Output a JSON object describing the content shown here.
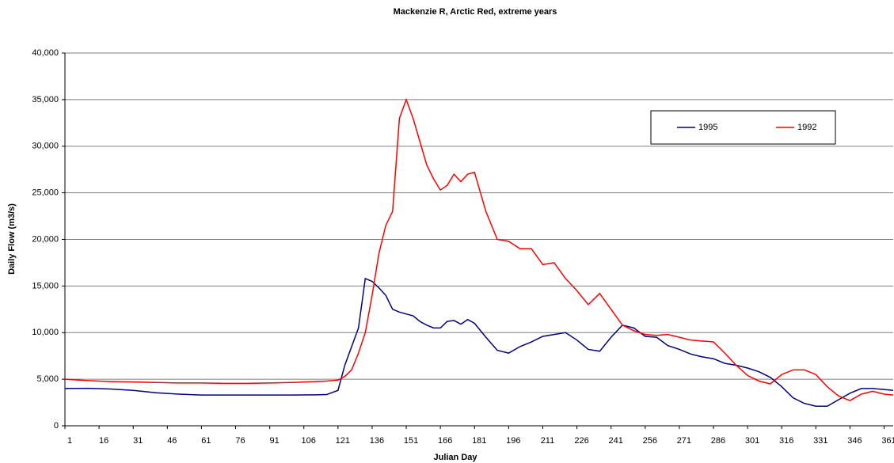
{
  "chart_data": {
    "type": "line",
    "title": "Mackenzie R, Arctic Red, extreme years",
    "x_label": "Julian Day",
    "y_label": "Daily Flow (m3/s)",
    "x": [
      1,
      11,
      21,
      31,
      41,
      51,
      61,
      71,
      81,
      91,
      101,
      111,
      116,
      121,
      124,
      127,
      130,
      133,
      136,
      139,
      142,
      145,
      148,
      151,
      154,
      157,
      160,
      163,
      166,
      169,
      172,
      175,
      178,
      181,
      186,
      191,
      196,
      201,
      206,
      211,
      216,
      221,
      226,
      231,
      236,
      241,
      246,
      251,
      256,
      261,
      266,
      271,
      276,
      281,
      286,
      291,
      296,
      301,
      306,
      311,
      316,
      321,
      326,
      331,
      336,
      341,
      346,
      351,
      356,
      361,
      365
    ],
    "series": [
      {
        "name": "1995",
        "color": "#000080",
        "values": [
          4000,
          4020,
          3950,
          3800,
          3550,
          3400,
          3300,
          3300,
          3300,
          3300,
          3300,
          3320,
          3350,
          3800,
          6500,
          8500,
          10500,
          15800,
          15500,
          14800,
          14000,
          12500,
          12200,
          12000,
          11800,
          11200,
          10800,
          10500,
          10500,
          11200,
          11300,
          10900,
          11400,
          11000,
          9500,
          8100,
          7800,
          8500,
          9000,
          9600,
          9800,
          10000,
          9200,
          8200,
          8000,
          9500,
          10800,
          10500,
          9600,
          9500,
          8600,
          8200,
          7700,
          7400,
          7200,
          6700,
          6500,
          6200,
          5800,
          5200,
          4200,
          3000,
          2400,
          2100,
          2100,
          2800,
          3500,
          4000,
          4000,
          3900,
          3800
        ]
      },
      {
        "name": "1992",
        "color": "#ff0000",
        "values": [
          5000,
          4850,
          4750,
          4700,
          4650,
          4600,
          4600,
          4550,
          4550,
          4600,
          4650,
          4750,
          4800,
          4900,
          5300,
          6000,
          7800,
          10000,
          14000,
          18500,
          21500,
          23000,
          33000,
          35000,
          33000,
          30500,
          28000,
          26500,
          25300,
          25800,
          27000,
          26200,
          27000,
          27200,
          23000,
          20000,
          19800,
          19000,
          19000,
          17300,
          17500,
          15800,
          14500,
          13000,
          14200,
          12500,
          10800,
          10200,
          9800,
          9700,
          9800,
          9500,
          9200,
          9100,
          9000,
          7800,
          6500,
          5400,
          4800,
          4500,
          5500,
          6000,
          6000,
          5500,
          4200,
          3200,
          2700,
          3400,
          3700,
          3400,
          3300
        ]
      }
    ],
    "xlim": [
      1,
      365
    ],
    "xticks": [
      1,
      16,
      31,
      46,
      61,
      76,
      91,
      106,
      121,
      136,
      151,
      166,
      181,
      196,
      211,
      226,
      241,
      256,
      271,
      286,
      301,
      316,
      331,
      346,
      361
    ],
    "ylim": [
      0,
      40000
    ],
    "yticks": [
      0,
      {
        "value": 5000,
        "label": "5,000"
      },
      {
        "value": 10000,
        "label": "10,000"
      },
      {
        "value": 15000,
        "label": "15,000"
      },
      {
        "value": 20000,
        "label": "20,000"
      },
      {
        "value": 25000,
        "label": "25,000"
      },
      {
        "value": 30000,
        "label": "30,000"
      },
      {
        "value": 35000,
        "label": "35,000"
      },
      {
        "value": 40000,
        "label": "40,000"
      }
    ],
    "grid": true
  }
}
